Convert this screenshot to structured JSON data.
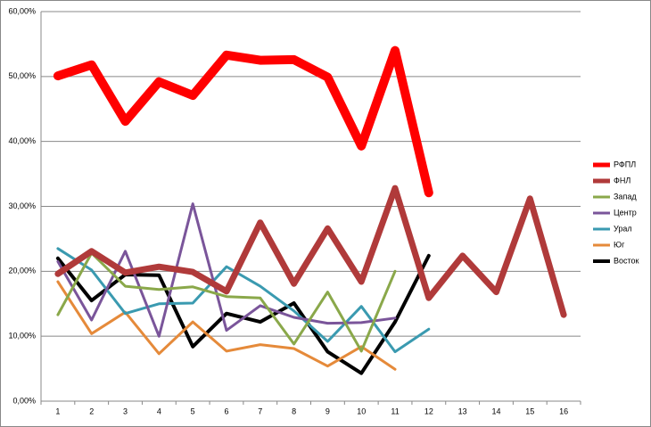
{
  "chart_data": {
    "type": "line",
    "categories": [
      "1",
      "2",
      "3",
      "4",
      "5",
      "6",
      "7",
      "8",
      "9",
      "10",
      "11",
      "12",
      "13",
      "14",
      "15",
      "16"
    ],
    "series": [
      {
        "name": "РФПЛ",
        "color": "#ff0000",
        "width": 10,
        "values": [
          50.1,
          51.8,
          43.1,
          49.2,
          47.1,
          53.3,
          52.5,
          52.6,
          49.9,
          39.3,
          54.0,
          32.1,
          null,
          null,
          null,
          null
        ]
      },
      {
        "name": "ФНЛ",
        "color": "#b03a3a",
        "width": 7,
        "values": [
          19.6,
          23.1,
          19.8,
          20.7,
          19.9,
          16.9,
          27.5,
          18.1,
          26.6,
          18.4,
          32.8,
          15.9,
          22.4,
          16.8,
          31.2,
          13.3
        ]
      },
      {
        "name": "Запад",
        "color": "#8aa84a",
        "width": 3,
        "values": [
          13.3,
          22.8,
          17.7,
          17.2,
          17.6,
          16.1,
          15.9,
          8.8,
          16.8,
          7.7,
          20.0,
          null,
          null,
          null,
          null,
          null
        ]
      },
      {
        "name": "Центр",
        "color": "#7a559a",
        "width": 3,
        "values": [
          21.5,
          12.5,
          23.1,
          10.0,
          30.4,
          10.9,
          14.7,
          12.9,
          12.0,
          12.1,
          12.8,
          null,
          null,
          null,
          null,
          null
        ]
      },
      {
        "name": "Урал",
        "color": "#3a9ab0",
        "width": 3,
        "values": [
          23.5,
          20.2,
          13.5,
          15.0,
          15.1,
          20.7,
          17.7,
          13.9,
          9.2,
          14.6,
          7.6,
          11.1,
          null,
          null,
          null,
          null
        ]
      },
      {
        "name": "Юг",
        "color": "#e58a3a",
        "width": 3,
        "values": [
          18.4,
          10.4,
          13.7,
          7.3,
          12.2,
          7.7,
          8.7,
          8.1,
          5.4,
          8.4,
          4.9,
          null,
          null,
          null,
          null,
          null
        ]
      },
      {
        "name": "Восток",
        "color": "#000000",
        "width": 4,
        "values": [
          22.0,
          15.5,
          19.5,
          19.4,
          8.4,
          13.5,
          12.2,
          15.1,
          7.6,
          4.3,
          12.2,
          22.4,
          null,
          null,
          null,
          null
        ]
      }
    ],
    "ylim": [
      0,
      60
    ],
    "yticks": [
      {
        "value": 0,
        "label": "0,00%"
      },
      {
        "value": 10,
        "label": "10,00%"
      },
      {
        "value": 20,
        "label": "20,00%"
      },
      {
        "value": 30,
        "label": "30,00%"
      },
      {
        "value": 40,
        "label": "40,00%"
      },
      {
        "value": 50,
        "label": "50,00%"
      },
      {
        "value": 60,
        "label": "60,00%"
      }
    ],
    "grid": true,
    "legend": "right"
  }
}
